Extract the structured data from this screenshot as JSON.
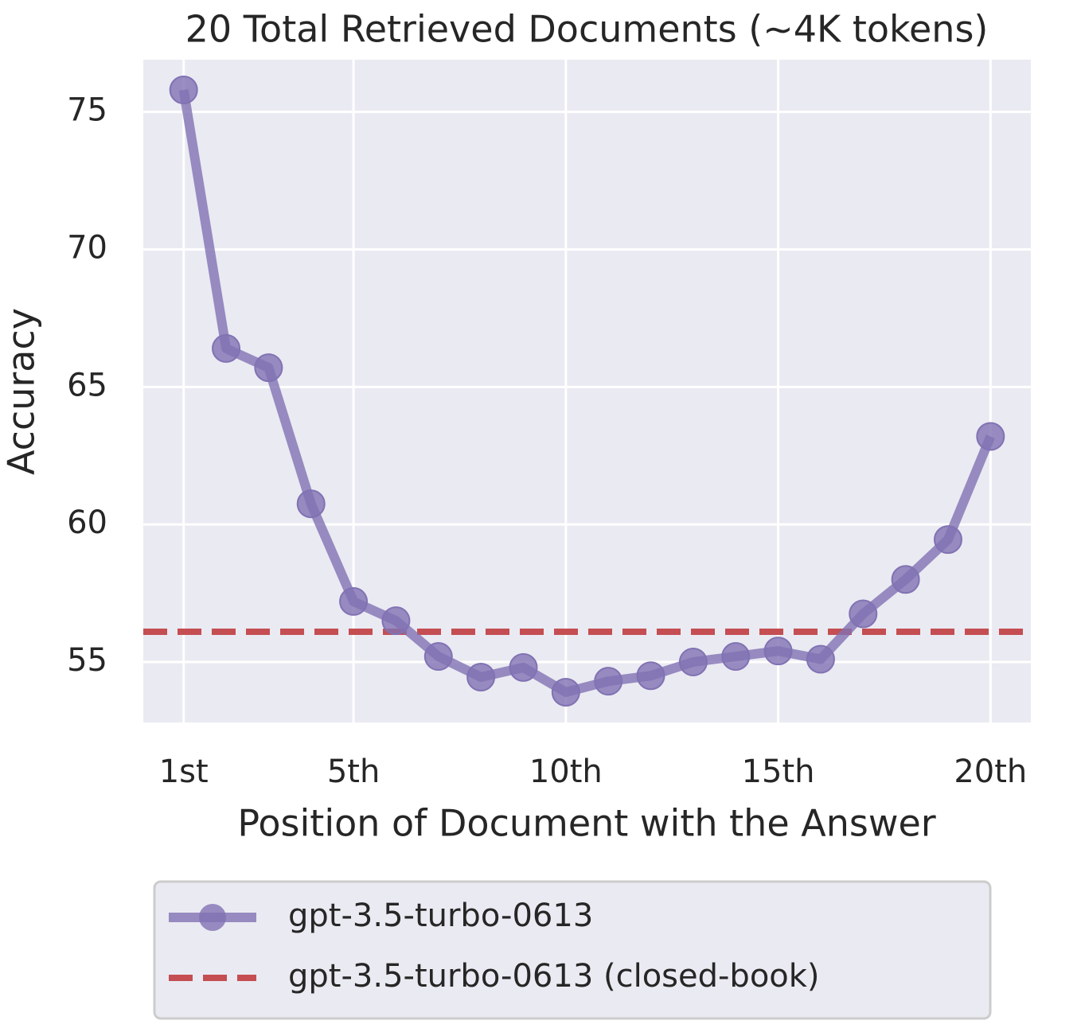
{
  "chart_data": {
    "type": "line",
    "title": "20 Total Retrieved Documents (~4K tokens)",
    "x_label": "Position of Document with the Answer",
    "y_label": "Accuracy",
    "x": [
      1,
      2,
      3,
      4,
      5,
      6,
      7,
      8,
      9,
      10,
      11,
      12,
      13,
      14,
      15,
      16,
      17,
      18,
      19,
      20
    ],
    "series": [
      {
        "name": "gpt-3.5-turbo-0613",
        "color": "#8172b3",
        "values": [
          75.8,
          66.4,
          65.7,
          60.75,
          57.2,
          56.5,
          55.2,
          54.45,
          54.8,
          53.9,
          54.3,
          54.5,
          55.0,
          55.2,
          55.4,
          55.1,
          56.75,
          58.0,
          59.45,
          63.2
        ]
      }
    ],
    "reference_lines": [
      {
        "name": "gpt-3.5-turbo-0613 (closed-book)",
        "color": "#c44e52",
        "value": 56.1,
        "style": "dashed"
      }
    ],
    "xlim": [
      0.05,
      20.95
    ],
    "ylim": [
      52.8,
      76.9
    ],
    "xticks": [
      {
        "value": 1,
        "label": "1st"
      },
      {
        "value": 5,
        "label": "5th"
      },
      {
        "value": 10,
        "label": "10th"
      },
      {
        "value": 15,
        "label": "15th"
      },
      {
        "value": 20,
        "label": "20th"
      }
    ],
    "yticks": [
      55,
      60,
      65,
      70,
      75
    ],
    "grid": true,
    "legend": "bottom"
  }
}
